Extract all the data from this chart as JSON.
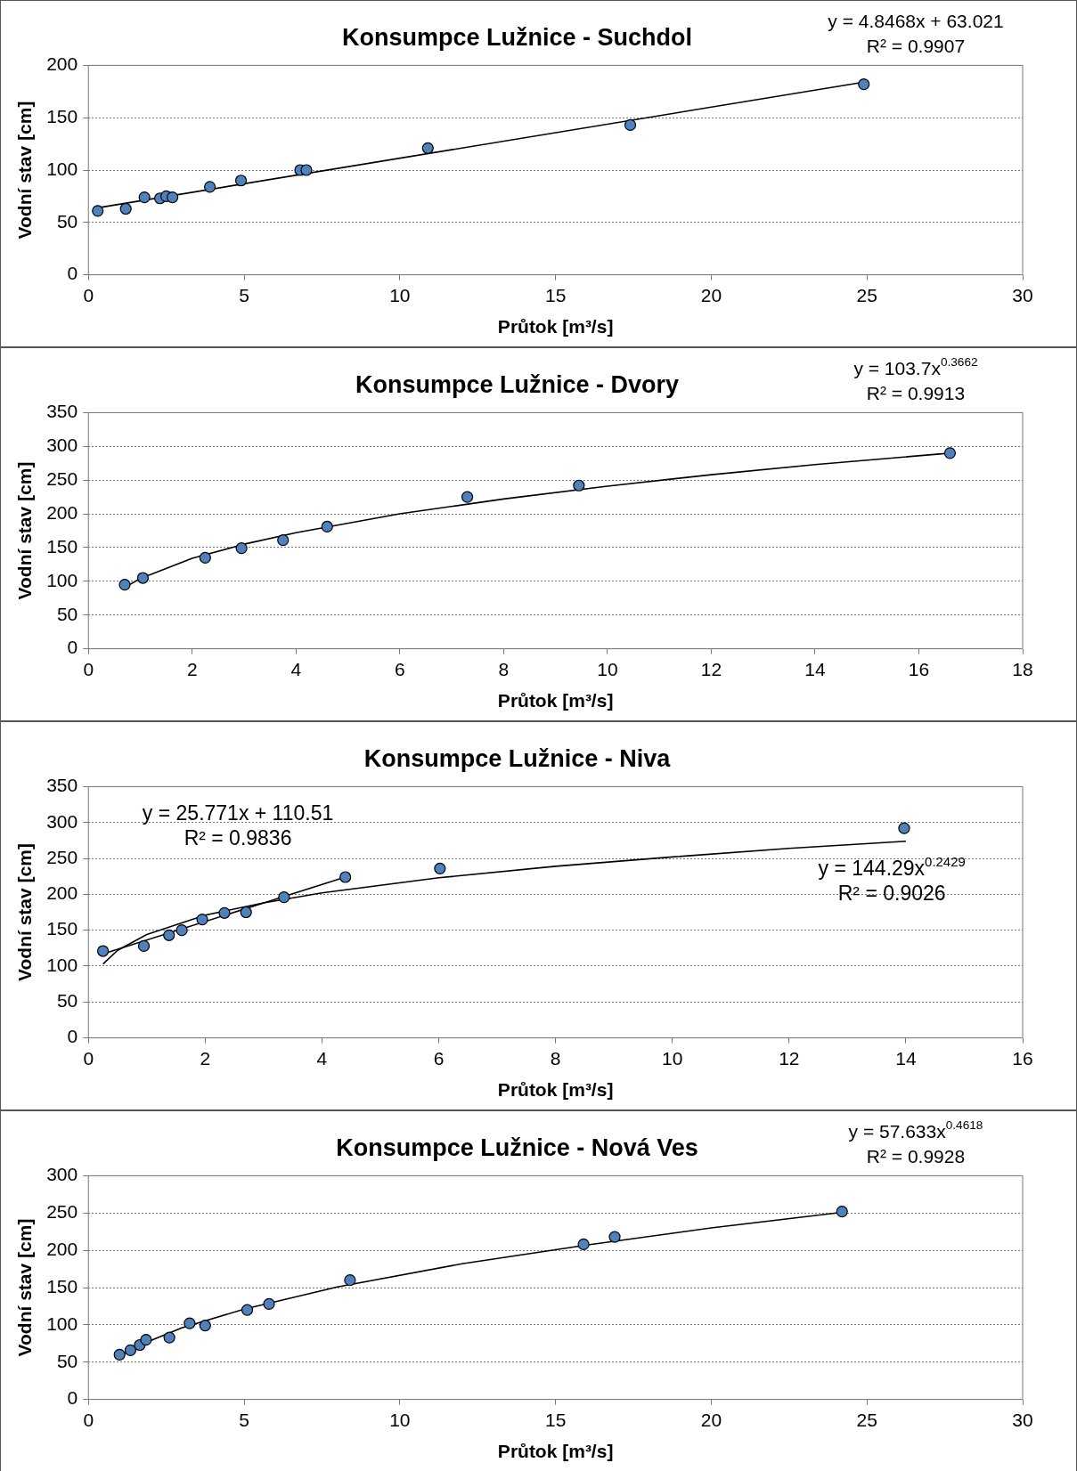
{
  "chart_data": [
    {
      "type": "scatter",
      "title": "Konsumpce Lužnice - Suchdol",
      "xlabel": "Průtok [m³/s]",
      "ylabel": "Vodní stav [cm]",
      "xlim": [
        0,
        30
      ],
      "xticks": [
        0,
        5,
        10,
        15,
        20,
        25,
        30
      ],
      "ylim": [
        0,
        200
      ],
      "yticks": [
        0,
        50,
        100,
        150,
        200
      ],
      "grid": "y",
      "legend": false,
      "marker": "circle",
      "annotations": [
        "y = 4.8468x + 63.021",
        "R² = 0.9907"
      ],
      "series": [
        {
          "type": "scatter",
          "color": "#4f81bd",
          "x": [
            0.3,
            1.2,
            1.8,
            2.3,
            2.5,
            2.7,
            3.9,
            4.9,
            6.8,
            7.0,
            10.9,
            17.4,
            24.9
          ],
          "values": [
            61,
            63,
            74,
            73,
            75,
            74,
            84,
            90,
            100,
            100,
            121,
            143,
            182
          ]
        },
        {
          "type": "line",
          "color": "#000000",
          "marker": "none",
          "x": [
            0.3,
            24.9
          ],
          "values": [
            64,
            184
          ]
        }
      ]
    },
    {
      "type": "scatter",
      "title": "Konsumpce Lužnice - Dvory",
      "xlabel": "Průtok [m³/s]",
      "ylabel": "Vodní stav [cm]",
      "xlim": [
        0,
        18
      ],
      "xticks": [
        0,
        2,
        4,
        6,
        8,
        10,
        12,
        14,
        16,
        18
      ],
      "ylim": [
        0,
        350
      ],
      "yticks": [
        0,
        50,
        100,
        150,
        200,
        250,
        300,
        350
      ],
      "grid": "y",
      "legend": false,
      "marker": "circle",
      "annotations": [
        "y = 103.7x$^{0.3662}$",
        "R² = 0.9913"
      ],
      "series": [
        {
          "type": "scatter",
          "color": "#4f81bd",
          "x": [
            0.7,
            1.05,
            2.25,
            2.95,
            3.75,
            4.6,
            7.3,
            9.45,
            16.6
          ],
          "values": [
            95,
            105,
            135,
            149,
            161,
            181,
            225,
            242,
            290
          ]
        },
        {
          "type": "line",
          "color": "#000000",
          "marker": "none",
          "x": [
            0.7,
            1,
            2,
            3,
            4,
            6,
            8,
            10,
            12,
            14,
            16.6
          ],
          "values": [
            91,
            104,
            134,
            155,
            172,
            200,
            222,
            241,
            258,
            273,
            290
          ]
        }
      ]
    },
    {
      "type": "scatter",
      "title": "Konsumpce Lužnice - Niva",
      "xlabel": "Průtok [m³/s]",
      "ylabel": "Vodní stav [cm]",
      "xlim": [
        0,
        16
      ],
      "xticks": [
        0,
        2,
        4,
        6,
        8,
        10,
        12,
        14,
        16
      ],
      "ylim": [
        0,
        350
      ],
      "yticks": [
        0,
        50,
        100,
        150,
        200,
        250,
        300,
        350
      ],
      "grid": "y",
      "legend": false,
      "marker": "circle",
      "annotations": [
        "y = 25.771x + 110.51",
        "R² = 0.9836",
        "y = 144.29x$^{0.2429}$",
        "R² = 0.9026"
      ],
      "series": [
        {
          "type": "scatter",
          "color": "#4f81bd",
          "x": [
            0.25,
            0.95,
            1.38,
            1.6,
            1.95,
            2.33,
            2.7,
            3.35,
            4.4,
            6.02,
            13.97
          ],
          "values": [
            121,
            128,
            143,
            150,
            165,
            174,
            175,
            196,
            224,
            236,
            292
          ]
        },
        {
          "type": "line",
          "color": "#000000",
          "marker": "none",
          "x": [
            0.25,
            4.4
          ],
          "values": [
            117,
            224
          ]
        },
        {
          "type": "line",
          "color": "#000000",
          "marker": "none",
          "x": [
            0.25,
            0.5,
            1,
            2,
            3,
            4,
            6,
            8,
            10,
            12,
            14
          ],
          "values": [
            103,
            122,
            144,
            171,
            188,
            202,
            223,
            239,
            252,
            264,
            274
          ]
        }
      ]
    },
    {
      "type": "scatter",
      "title": "Konsumpce Lužnice - Nová Ves",
      "xlabel": "Průtok [m³/s]",
      "ylabel": "Vodní stav [cm]",
      "xlim": [
        0,
        30
      ],
      "xticks": [
        0,
        5,
        10,
        15,
        20,
        25,
        30
      ],
      "ylim": [
        0,
        300
      ],
      "yticks": [
        0,
        50,
        100,
        150,
        200,
        250,
        300
      ],
      "grid": "y",
      "legend": false,
      "marker": "circle",
      "annotations": [
        "y = 57.633x$^{0.4618}$",
        "R² = 0.9928"
      ],
      "series": [
        {
          "type": "scatter",
          "color": "#4f81bd",
          "x": [
            1.0,
            1.35,
            1.65,
            1.85,
            2.6,
            3.25,
            3.75,
            5.1,
            5.8,
            8.4,
            15.9,
            16.9,
            24.2
          ],
          "values": [
            60,
            66,
            73,
            80,
            83,
            102,
            99,
            120,
            128,
            160,
            208,
            218,
            252
          ]
        },
        {
          "type": "line",
          "color": "#000000",
          "marker": "none",
          "x": [
            1,
            2,
            3,
            5,
            8,
            12,
            16,
            20,
            24.2
          ],
          "values": [
            58,
            79,
            96,
            121,
            151,
            182,
            207,
            230,
            251
          ]
        }
      ]
    }
  ]
}
